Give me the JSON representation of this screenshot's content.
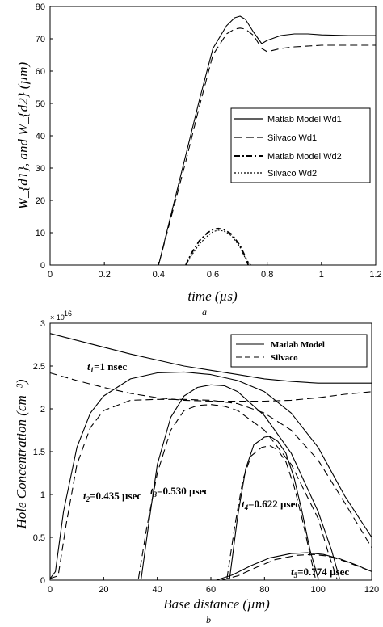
{
  "chart_data": [
    {
      "type": "line",
      "caption": "a",
      "xlabel": "time (µs)",
      "ylabel": "W_{d1}, and W_{d2} (µm)",
      "xlim": [
        0,
        1.2
      ],
      "ylim": [
        0,
        80
      ],
      "x_ticks": [
        "0",
        "0.2",
        "0.4",
        "0.6",
        "0.8",
        "1",
        "1.2"
      ],
      "y_ticks": [
        "0",
        "10",
        "20",
        "30",
        "40",
        "50",
        "60",
        "70",
        "80"
      ],
      "grid": false,
      "legend_position": "center-right",
      "series": [
        {
          "name": "Matlab Model Wd1",
          "style": "solid",
          "x": [
            0,
            0.4,
            0.45,
            0.5,
            0.55,
            0.6,
            0.65,
            0.68,
            0.7,
            0.72,
            0.75,
            0.78,
            0.8,
            0.85,
            0.9,
            0.95,
            1.0,
            1.1,
            1.2
          ],
          "y": [
            0,
            0,
            17,
            34,
            51,
            67,
            74,
            76.5,
            77,
            76,
            72,
            68.5,
            69.5,
            71,
            71.5,
            71.5,
            71.2,
            71,
            71
          ]
        },
        {
          "name": "Silvaco Wd1",
          "style": "dashed",
          "x": [
            0,
            0.4,
            0.45,
            0.5,
            0.55,
            0.6,
            0.65,
            0.68,
            0.7,
            0.72,
            0.75,
            0.78,
            0.8,
            0.85,
            0.9,
            1.0,
            1.1,
            1.2
          ],
          "y": [
            0,
            0,
            16,
            32,
            49,
            65,
            71.5,
            73,
            73.3,
            73,
            71,
            67,
            66,
            67,
            67.5,
            68,
            68,
            68
          ]
        },
        {
          "name": "Matlab Model Wd2",
          "style": "dashdot",
          "x": [
            0.5,
            0.52,
            0.55,
            0.58,
            0.6,
            0.62,
            0.64,
            0.67,
            0.7,
            0.72,
            0.73
          ],
          "y": [
            0,
            3.5,
            7.5,
            10,
            11,
            11.3,
            11,
            9.5,
            6,
            2.5,
            0
          ]
        },
        {
          "name": "Silvaco Wd2",
          "style": "dotted",
          "x": [
            0.5,
            0.52,
            0.55,
            0.58,
            0.6,
            0.62,
            0.64,
            0.67,
            0.7,
            0.72,
            0.74
          ],
          "y": [
            0,
            2.8,
            6.5,
            9,
            10.3,
            10.8,
            10.5,
            9,
            5.5,
            2,
            0
          ]
        }
      ]
    },
    {
      "type": "line",
      "caption": "b",
      "xlabel": "Base distance (µm)",
      "ylabel": "Hole Concentration (cm⁻³)",
      "xlim": [
        0,
        120
      ],
      "ylim": [
        0,
        3
      ],
      "y_scale_label": "× 10",
      "y_scale_exponent": "16",
      "x_ticks": [
        "0",
        "20",
        "40",
        "60",
        "80",
        "100",
        "120"
      ],
      "y_ticks": [
        "0",
        "0.5",
        "1",
        "1.5",
        "2",
        "2.5",
        "3"
      ],
      "grid": false,
      "legend_position": "top-right",
      "legend": [
        "Matlab Model",
        "Silvaco"
      ],
      "annotations": [
        {
          "base": "t",
          "sub": "1",
          "text": "=1 nsec"
        },
        {
          "base": "t",
          "sub": "2",
          "text": "=0.435 µsec"
        },
        {
          "base": "t",
          "sub": "3",
          "text": "=0.530 µsec"
        },
        {
          "base": "t",
          "sub": "4",
          "text": "=0.622 µsec"
        },
        {
          "base": "t",
          "sub": "5",
          "text": "=0.774 µsec"
        }
      ],
      "series": [
        {
          "group": "t1=1 nsec",
          "model": "Matlab Model",
          "style": "solid",
          "x": [
            0,
            10,
            20,
            30,
            40,
            50,
            60,
            70,
            80,
            90,
            100,
            110,
            120
          ],
          "y": [
            2.88,
            2.8,
            2.72,
            2.64,
            2.57,
            2.5,
            2.45,
            2.4,
            2.35,
            2.32,
            2.3,
            2.3,
            2.3
          ]
        },
        {
          "group": "t1=1 nsec",
          "model": "Silvaco",
          "style": "dashed",
          "x": [
            0,
            10,
            20,
            30,
            40,
            50,
            60,
            70,
            80,
            90,
            100,
            110,
            120
          ],
          "y": [
            2.42,
            2.33,
            2.25,
            2.18,
            2.13,
            2.1,
            2.09,
            2.09,
            2.09,
            2.1,
            2.13,
            2.17,
            2.2
          ]
        },
        {
          "group": "t2=0.435 µsec",
          "model": "Matlab Model",
          "style": "solid",
          "x": [
            0,
            2,
            5,
            10,
            15,
            20,
            30,
            40,
            50,
            60,
            70,
            80,
            90,
            100,
            110,
            120
          ],
          "y": [
            0.02,
            0.1,
            0.8,
            1.55,
            1.95,
            2.15,
            2.35,
            2.42,
            2.43,
            2.4,
            2.33,
            2.2,
            1.95,
            1.55,
            0.98,
            0.5
          ]
        },
        {
          "group": "t2=0.435 µsec",
          "model": "Silvaco",
          "style": "dashed",
          "x": [
            0,
            3,
            6,
            10,
            15,
            20,
            30,
            40,
            50,
            60,
            70,
            80,
            90,
            100,
            110,
            120
          ],
          "y": [
            0.02,
            0.05,
            0.65,
            1.35,
            1.78,
            1.98,
            2.1,
            2.11,
            2.11,
            2.1,
            2.06,
            1.95,
            1.75,
            1.4,
            0.9,
            0.38
          ]
        },
        {
          "group": "t3=0.530 µsec",
          "model": "Matlab Model",
          "style": "solid",
          "x": [
            34,
            37,
            40,
            45,
            50,
            55,
            60,
            65,
            70,
            80,
            90,
            100,
            105,
            108
          ],
          "y": [
            0.02,
            0.7,
            1.35,
            1.9,
            2.15,
            2.25,
            2.28,
            2.27,
            2.2,
            1.92,
            1.48,
            0.8,
            0.35,
            0.02
          ]
        },
        {
          "group": "t3=0.530 µsec",
          "model": "Silvaco",
          "style": "dashed",
          "x": [
            33,
            36,
            40,
            45,
            50,
            55,
            60,
            65,
            70,
            80,
            90,
            100,
            104,
            107
          ],
          "y": [
            0.02,
            0.6,
            1.25,
            1.75,
            1.98,
            2.04,
            2.05,
            2.03,
            1.98,
            1.75,
            1.35,
            0.72,
            0.3,
            0.02
          ]
        },
        {
          "group": "t4=0.622 µsec",
          "model": "Matlab Model",
          "style": "solid",
          "x": [
            67,
            70,
            73,
            76,
            80,
            82,
            85,
            88,
            91,
            94,
            97,
            100
          ],
          "y": [
            0.02,
            0.75,
            1.3,
            1.58,
            1.67,
            1.68,
            1.62,
            1.48,
            1.2,
            0.8,
            0.35,
            0.02
          ]
        },
        {
          "group": "t4=0.622 µsec",
          "model": "Silvaco",
          "style": "dashed",
          "x": [
            66,
            69,
            72,
            75,
            79,
            82,
            85,
            88,
            91,
            94,
            97,
            99
          ],
          "y": [
            0.02,
            0.65,
            1.18,
            1.45,
            1.55,
            1.57,
            1.52,
            1.38,
            1.1,
            0.72,
            0.3,
            0.02
          ]
        },
        {
          "group": "t5=0.774 µsec",
          "model": "Matlab Model",
          "style": "solid",
          "x": [
            62,
            68,
            75,
            82,
            90,
            96,
            102,
            108,
            114,
            120
          ],
          "y": [
            0,
            0.06,
            0.17,
            0.26,
            0.31,
            0.32,
            0.3,
            0.25,
            0.18,
            0.1
          ]
        },
        {
          "group": "t5=0.774 µsec",
          "model": "Silvaco",
          "style": "dashed",
          "x": [
            64,
            70,
            77,
            84,
            92,
            98,
            104,
            110,
            116,
            120
          ],
          "y": [
            0,
            0.05,
            0.15,
            0.24,
            0.29,
            0.3,
            0.28,
            0.22,
            0.15,
            0.1
          ]
        }
      ]
    }
  ]
}
